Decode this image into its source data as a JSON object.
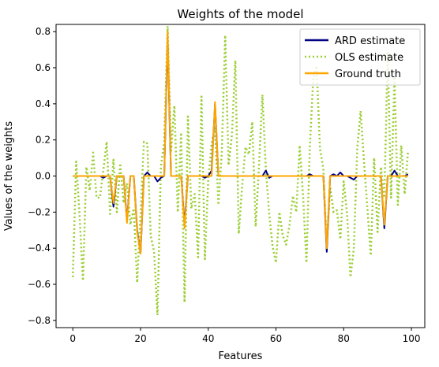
{
  "chart_data": {
    "type": "line",
    "title": "Weights of the model",
    "xlabel": "Features",
    "ylabel": "Values of the weights",
    "xlim": [
      -4.95,
      103.95
    ],
    "ylim": [
      -0.84,
      0.84
    ],
    "xticks": [
      0,
      20,
      40,
      60,
      80,
      100
    ],
    "yticks": [
      -0.8,
      -0.6,
      -0.4,
      -0.2,
      0.0,
      0.2,
      0.4,
      0.6,
      0.8
    ],
    "ytick_labels": [
      "−0.8",
      "−0.6",
      "−0.4",
      "−0.2",
      "0.0",
      "0.2",
      "0.4",
      "0.6",
      "0.8"
    ],
    "legend_position": "top-right",
    "grid": false,
    "series": [
      {
        "name": "ARD estimate",
        "color": "#000080",
        "style": "solid",
        "x": [
          0,
          1,
          2,
          3,
          4,
          5,
          6,
          7,
          8,
          9,
          10,
          11,
          12,
          13,
          14,
          15,
          16,
          17,
          18,
          19,
          20,
          21,
          22,
          23,
          24,
          25,
          26,
          27,
          28,
          29,
          30,
          31,
          32,
          33,
          34,
          35,
          36,
          37,
          38,
          39,
          40,
          41,
          42,
          43,
          44,
          45,
          46,
          47,
          48,
          49,
          50,
          51,
          52,
          53,
          54,
          55,
          56,
          57,
          58,
          59,
          60,
          61,
          62,
          63,
          64,
          65,
          66,
          67,
          68,
          69,
          70,
          71,
          72,
          73,
          74,
          75,
          76,
          77,
          78,
          79,
          80,
          81,
          82,
          83,
          84,
          85,
          86,
          87,
          88,
          89,
          90,
          91,
          92,
          93,
          94,
          95,
          96,
          97,
          98,
          99
        ],
        "values": [
          0,
          0,
          0,
          0,
          0,
          0,
          0,
          0,
          0,
          -0.01,
          0,
          0,
          -0.17,
          0,
          0,
          0,
          -0.25,
          0,
          0,
          -0.3,
          -0.43,
          0,
          0.02,
          0,
          0,
          -0.03,
          -0.01,
          0,
          0.77,
          0,
          0,
          0,
          0,
          -0.27,
          0,
          0,
          0,
          0,
          0,
          -0.01,
          0,
          0.03,
          0.4,
          0,
          0,
          0,
          0,
          0,
          0,
          0,
          0,
          0,
          0,
          0,
          0,
          0,
          0,
          0.03,
          -0.01,
          0,
          0,
          0,
          0,
          0,
          0,
          0,
          0,
          0,
          0,
          0,
          0.01,
          0,
          0,
          0,
          0,
          -0.42,
          0,
          0.01,
          0,
          0.02,
          0,
          0,
          -0.01,
          -0.02,
          0,
          0,
          0,
          0,
          0,
          0,
          0,
          0,
          -0.29,
          0,
          0,
          0.03,
          0,
          0,
          0,
          0.01
        ]
      },
      {
        "name": "OLS estimate",
        "color": "#9acd32",
        "style": "dotted",
        "x": [
          0,
          1,
          2,
          3,
          4,
          5,
          6,
          7,
          8,
          9,
          10,
          11,
          12,
          13,
          14,
          15,
          16,
          17,
          18,
          19,
          20,
          21,
          22,
          23,
          24,
          25,
          26,
          27,
          28,
          29,
          30,
          31,
          32,
          33,
          34,
          35,
          36,
          37,
          38,
          39,
          40,
          41,
          42,
          43,
          44,
          45,
          46,
          47,
          48,
          49,
          50,
          51,
          52,
          53,
          54,
          55,
          56,
          57,
          58,
          59,
          60,
          61,
          62,
          63,
          64,
          65,
          66,
          67,
          68,
          69,
          70,
          71,
          72,
          73,
          74,
          75,
          76,
          77,
          78,
          79,
          80,
          81,
          82,
          83,
          84,
          85,
          86,
          87,
          88,
          89,
          90,
          91,
          92,
          93,
          94,
          95,
          96,
          97,
          98,
          99
        ],
        "values": [
          -0.56,
          0.08,
          -0.22,
          -0.58,
          0.05,
          -0.08,
          0.13,
          -0.12,
          -0.12,
          0.03,
          0.19,
          -0.21,
          0.09,
          -0.2,
          0.07,
          -0.15,
          -0.04,
          -0.27,
          -0.18,
          -0.59,
          -0.21,
          0.19,
          0.18,
          -0.33,
          -0.42,
          -0.77,
          0.05,
          0.19,
          0.83,
          0.14,
          0.39,
          -0.2,
          0.24,
          -0.7,
          0.33,
          -0.18,
          -0.1,
          -0.45,
          0.44,
          -0.46,
          -0.02,
          0.18,
          0.27,
          -0.16,
          0.13,
          0.78,
          0.06,
          0.23,
          0.64,
          -0.32,
          -0.06,
          0.16,
          0.12,
          0.3,
          -0.28,
          0.06,
          0.45,
          0.04,
          -0.21,
          -0.39,
          -0.48,
          -0.2,
          -0.33,
          -0.38,
          -0.27,
          -0.11,
          -0.2,
          0.17,
          -0.11,
          -0.48,
          0.16,
          0.54,
          0.61,
          0.15,
          0.04,
          -0.39,
          -0.06,
          -0.2,
          -0.19,
          -0.35,
          -0.03,
          -0.21,
          -0.56,
          -0.4,
          0.15,
          0.36,
          0.08,
          -0.18,
          -0.44,
          0.1,
          -0.31,
          0.05,
          -0.12,
          0.68,
          -0.12,
          0.55,
          -0.16,
          0.17,
          -0.1,
          0.14
        ]
      },
      {
        "name": "Ground truth",
        "color": "#ffa500",
        "style": "solid",
        "x": [
          0,
          1,
          2,
          3,
          4,
          5,
          6,
          7,
          8,
          9,
          10,
          11,
          12,
          13,
          14,
          15,
          16,
          17,
          18,
          19,
          20,
          21,
          22,
          23,
          24,
          25,
          26,
          27,
          28,
          29,
          30,
          31,
          32,
          33,
          34,
          35,
          36,
          37,
          38,
          39,
          40,
          41,
          42,
          43,
          44,
          45,
          46,
          47,
          48,
          49,
          50,
          51,
          52,
          53,
          54,
          55,
          56,
          57,
          58,
          59,
          60,
          61,
          62,
          63,
          64,
          65,
          66,
          67,
          68,
          69,
          70,
          71,
          72,
          73,
          74,
          75,
          76,
          77,
          78,
          79,
          80,
          81,
          82,
          83,
          84,
          85,
          86,
          87,
          88,
          89,
          90,
          91,
          92,
          93,
          94,
          95,
          96,
          97,
          98,
          99
        ],
        "values": [
          0,
          0,
          0,
          0,
          0,
          0,
          0,
          0,
          0,
          0,
          0,
          0,
          -0.15,
          0,
          0,
          0,
          -0.26,
          0,
          0,
          -0.31,
          -0.43,
          0,
          0,
          0,
          0,
          0,
          0,
          0,
          0.8,
          0,
          0,
          0,
          0,
          -0.29,
          0,
          0,
          0,
          0,
          0,
          0,
          0,
          0,
          0.41,
          0,
          0,
          0,
          0,
          0,
          0,
          0,
          0,
          0,
          0,
          0,
          0,
          0,
          0,
          0,
          0,
          0,
          0,
          0,
          0,
          0,
          0,
          0,
          0,
          0,
          0,
          0,
          0,
          0,
          0,
          0,
          0,
          -0.4,
          0,
          0,
          0,
          0,
          0,
          0,
          0,
          0,
          0,
          0,
          0,
          0,
          0,
          0,
          0,
          0,
          -0.27,
          0,
          0,
          0,
          0,
          0,
          0,
          0
        ]
      }
    ]
  }
}
